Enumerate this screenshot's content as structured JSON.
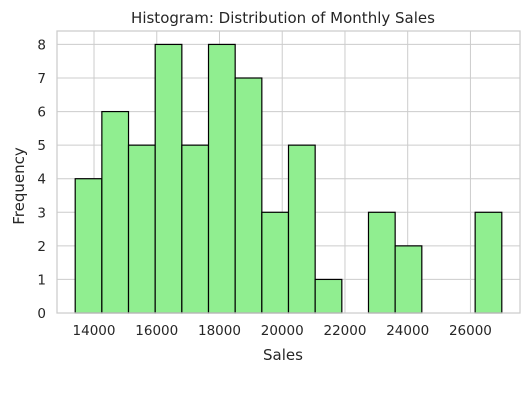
{
  "chart_data": {
    "type": "bar",
    "title": "Histogram: Distribution of Monthly Sales",
    "xlabel": "Sales",
    "ylabel": "Frequency",
    "bins": [
      {
        "start": 13400,
        "end": 14250,
        "count": 4
      },
      {
        "start": 14250,
        "end": 15100,
        "count": 6
      },
      {
        "start": 15100,
        "end": 15950,
        "count": 5
      },
      {
        "start": 15950,
        "end": 16800,
        "count": 8
      },
      {
        "start": 16800,
        "end": 17650,
        "count": 5
      },
      {
        "start": 17650,
        "end": 18500,
        "count": 8
      },
      {
        "start": 18500,
        "end": 19350,
        "count": 7
      },
      {
        "start": 19350,
        "end": 20200,
        "count": 3
      },
      {
        "start": 20200,
        "end": 21050,
        "count": 5
      },
      {
        "start": 21050,
        "end": 21900,
        "count": 1
      },
      {
        "start": 21900,
        "end": 22750,
        "count": 0
      },
      {
        "start": 22750,
        "end": 23600,
        "count": 3
      },
      {
        "start": 23600,
        "end": 24450,
        "count": 2
      },
      {
        "start": 24450,
        "end": 25300,
        "count": 0
      },
      {
        "start": 25300,
        "end": 26150,
        "count": 0
      },
      {
        "start": 26150,
        "end": 27000,
        "count": 3
      }
    ],
    "xticks": [
      14000,
      16000,
      18000,
      20000,
      22000,
      24000,
      26000
    ],
    "yticks": [
      0,
      1,
      2,
      3,
      4,
      5,
      6,
      7,
      8
    ],
    "xlim": [
      12820,
      27580
    ],
    "ylim": [
      0,
      8.4
    ],
    "grid": true,
    "colors": {
      "bar_fill": "#90ee90",
      "bar_edge": "#000000",
      "grid": "#cccccc",
      "axes_border": "#cccccc",
      "text": "#262626"
    }
  }
}
